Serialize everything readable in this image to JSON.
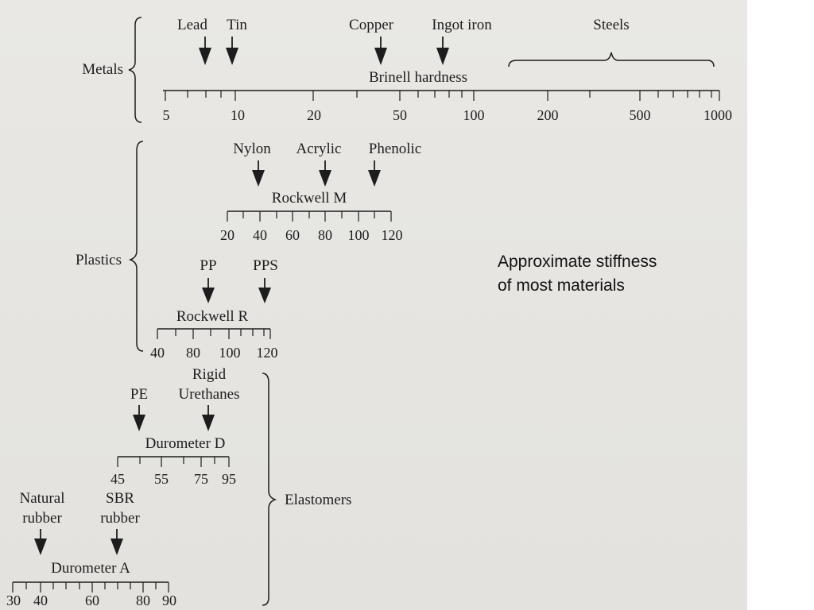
{
  "caption": "Approximate stiffness of most materials",
  "groups": {
    "metals": "Metals",
    "plastics": "Plastics",
    "elastomers": "Elastomers"
  },
  "scales": {
    "brinell": {
      "title": "Brinell hardness",
      "tick_labels": [
        "5",
        "10",
        "20",
        "50",
        "100",
        "200",
        "500",
        "1000"
      ],
      "materials": [
        "Lead",
        "Tin",
        "Copper",
        "Ingot iron",
        "Steels"
      ]
    },
    "rockwell_m": {
      "title": "Rockwell M",
      "tick_labels": [
        "20",
        "40",
        "60",
        "80",
        "100",
        "120"
      ],
      "materials": [
        "Nylon",
        "Acrylic",
        "Phenolic"
      ]
    },
    "rockwell_r": {
      "title": "Rockwell R",
      "tick_labels": [
        "40",
        "80",
        "100",
        "120"
      ],
      "materials": [
        "PP",
        "PPS"
      ]
    },
    "durometer_d": {
      "title": "Durometer D",
      "tick_labels": [
        "45",
        "55",
        "75",
        "95"
      ],
      "materials": [
        "PE",
        "Rigid Urethanes"
      ],
      "material_lines": {
        "rigid": "Rigid",
        "urethanes": "Urethanes"
      }
    },
    "durometer_a": {
      "title": "Durometer A",
      "tick_labels": [
        "30",
        "40",
        "60",
        "80",
        "90"
      ],
      "materials": [
        "Natural rubber",
        "SBR rubber"
      ],
      "material_lines": {
        "natural": "Natural",
        "natural_2": "rubber",
        "sbr": "SBR",
        "sbr_2": "rubber"
      }
    }
  }
}
